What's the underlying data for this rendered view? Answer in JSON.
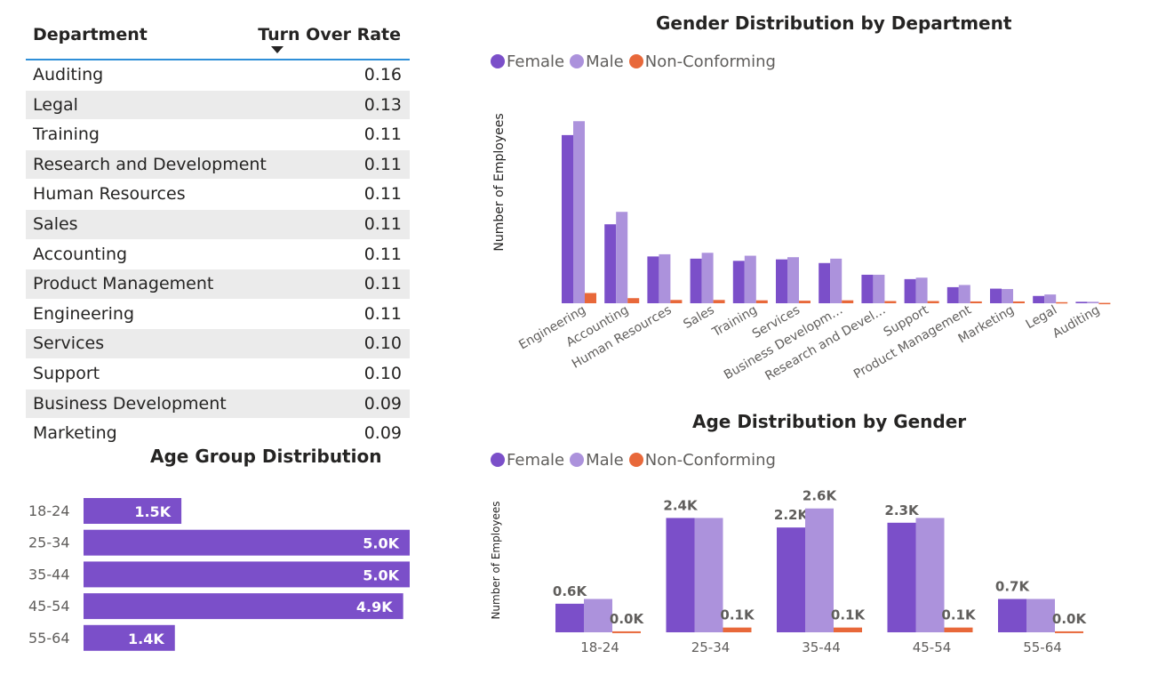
{
  "table": {
    "headers": {
      "department": "Department",
      "rate": "Turn Over Rate"
    },
    "rows": [
      {
        "department": "Auditing",
        "rate": "0.16"
      },
      {
        "department": "Legal",
        "rate": "0.13"
      },
      {
        "department": "Training",
        "rate": "0.11"
      },
      {
        "department": "Research and Development",
        "rate": "0.11"
      },
      {
        "department": "Human Resources",
        "rate": "0.11"
      },
      {
        "department": "Sales",
        "rate": "0.11"
      },
      {
        "department": "Accounting",
        "rate": "0.11"
      },
      {
        "department": "Product Management",
        "rate": "0.11"
      },
      {
        "department": "Engineering",
        "rate": "0.11"
      },
      {
        "department": "Services",
        "rate": "0.10"
      },
      {
        "department": "Support",
        "rate": "0.10"
      },
      {
        "department": "Business Development",
        "rate": "0.09"
      },
      {
        "department": "Marketing",
        "rate": "0.09"
      }
    ]
  },
  "colors": {
    "female": "#7b4fc9",
    "male": "#ac92dc",
    "nonconforming": "#e8683a",
    "bar": "#7b4fc9",
    "header_line": "#2f8fd8",
    "alt_row": "#ebebeb"
  },
  "legend": [
    "Female",
    "Male",
    "Non-Conforming"
  ],
  "chart_data": [
    {
      "type": "bar",
      "orientation": "vertical",
      "title": "Gender Distribution by Department",
      "ylabel": "Number of Employees",
      "xlabel": "",
      "categories": [
        "Engineering",
        "Accounting",
        "Human Resources",
        "Sales",
        "Training",
        "Services",
        "Business Developm…",
        "Research and Devel…",
        "Support",
        "Product Management",
        "Marketing",
        "Legal",
        "Auditing"
      ],
      "ylim": [
        0,
        2700
      ],
      "series": [
        {
          "name": "Female",
          "values": [
            2300,
            1080,
            640,
            610,
            580,
            600,
            550,
            390,
            330,
            220,
            200,
            100,
            20
          ]
        },
        {
          "name": "Male",
          "values": [
            2490,
            1250,
            670,
            690,
            650,
            630,
            610,
            390,
            350,
            250,
            195,
            120,
            20
          ]
        },
        {
          "name": "Non-Conforming",
          "values": [
            140,
            70,
            45,
            45,
            40,
            35,
            40,
            30,
            30,
            25,
            25,
            15,
            5
          ]
        }
      ],
      "legend_position": "top-left",
      "grid": false
    },
    {
      "type": "bar",
      "orientation": "vertical",
      "title": "Age Distribution by Gender",
      "ylabel": "Number of Employees",
      "xlabel": "",
      "categories": [
        "18-24",
        "25-34",
        "35-44",
        "45-54",
        "55-64"
      ],
      "ylim": [
        0,
        2800
      ],
      "series": [
        {
          "name": "Female",
          "values": [
            0.6,
            2.4,
            2.2,
            2.3,
            0.7
          ],
          "labels": [
            "0.6K",
            "2.4K",
            "2.2K",
            "2.3K",
            "0.7K"
          ]
        },
        {
          "name": "Male",
          "values": [
            0.7,
            2.4,
            2.6,
            2.4,
            0.7
          ],
          "labels": [
            "",
            "",
            "2.6K",
            "",
            ""
          ]
        },
        {
          "name": "Non-Conforming",
          "values": [
            0.02,
            0.1,
            0.1,
            0.1,
            0.02
          ],
          "labels": [
            "0.0K",
            "0.1K",
            "0.1K",
            "0.1K",
            "0.0K"
          ]
        }
      ],
      "units": "thousands",
      "legend_position": "top-left",
      "grid": false
    },
    {
      "type": "bar",
      "orientation": "horizontal",
      "title": "Age Group Distribution",
      "categories": [
        "18-24",
        "25-34",
        "35-44",
        "45-54",
        "55-64"
      ],
      "values": [
        1.5,
        5.0,
        5.0,
        4.9,
        1.4
      ],
      "labels": [
        "1.5K",
        "5.0K",
        "5.0K",
        "4.9K",
        "1.4K"
      ],
      "units": "thousands",
      "xlim": [
        0,
        5.0
      ],
      "grid": false
    }
  ]
}
